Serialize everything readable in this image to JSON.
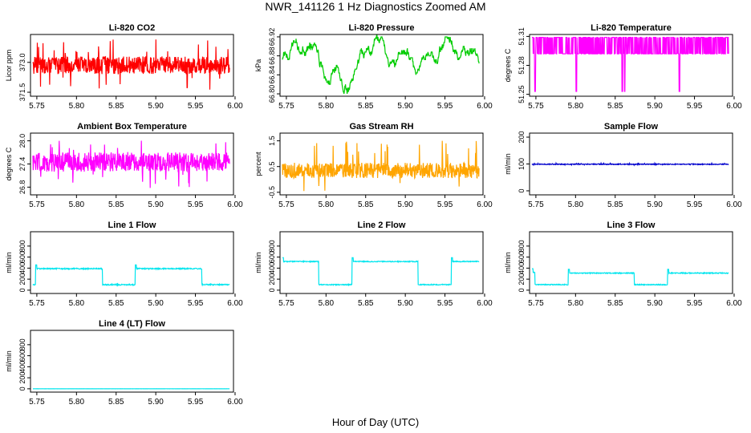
{
  "figure": {
    "title": "NWR_141126  1 Hz Diagnostics Zoomed AM",
    "xlabel": "Hour of Day (UTC)"
  },
  "chart_data": [
    {
      "id": "co2",
      "type": "line",
      "title": "Li-820 CO2",
      "ylabel": "Licor ppm",
      "color": "#ff0000",
      "xlim": [
        5.742,
        5.998
      ],
      "ylim": [
        371.3,
        374.4
      ],
      "yticks": [
        "371.5",
        "373.0"
      ],
      "ytick_values": [
        371.5,
        373.0
      ],
      "xticks": [
        "5.75",
        "5.80",
        "5.85",
        "5.90",
        "5.95",
        "6.00"
      ],
      "series_model": {
        "pattern": "noise",
        "x_start": 5.745,
        "x_end": 5.993,
        "base": 372.85,
        "amplitude": 0.45,
        "spike_min": 371.6,
        "spike_max": 374.2
      }
    },
    {
      "id": "pressure",
      "type": "line",
      "title": "Li-820 Pressure",
      "ylabel": "kPa",
      "color": "#00cc00",
      "xlim": [
        5.742,
        5.998
      ],
      "ylim": [
        66.795,
        66.925
      ],
      "yticks": [
        "66.80",
        "66.84",
        "66.88",
        "66.92"
      ],
      "ytick_values": [
        66.8,
        66.84,
        66.88,
        66.92
      ],
      "xticks": [
        "5.75",
        "5.80",
        "5.85",
        "5.90",
        "5.95",
        "6.00"
      ],
      "series_model": {
        "pattern": "walk",
        "x_start": 5.745,
        "x_end": 5.993,
        "min": 66.8,
        "max": 66.92,
        "start": 66.87,
        "end": 66.9
      }
    },
    {
      "id": "temperature",
      "type": "line",
      "title": "Li-820 Temperature",
      "ylabel": "degrees C",
      "color": "#ff00ff",
      "xlim": [
        5.742,
        5.998
      ],
      "ylim": [
        51.248,
        51.312
      ],
      "yticks": [
        "51.25",
        "51.28",
        "51.31"
      ],
      "ytick_values": [
        51.25,
        51.28,
        51.31
      ],
      "xticks": [
        "5.75",
        "5.80",
        "5.85",
        "5.90",
        "5.95",
        "6.00"
      ],
      "series_model": {
        "pattern": "two-level",
        "x_start": 5.745,
        "x_end": 5.993,
        "low": 51.292,
        "high": 51.309,
        "dip_value": 51.253,
        "dips": [
          5.749,
          5.801,
          5.859,
          5.862,
          5.931
        ]
      }
    },
    {
      "id": "ambient",
      "type": "line",
      "title": "Ambient Box Temperature",
      "ylabel": "degrees C",
      "color": "#ff00ff",
      "xlim": [
        5.742,
        5.998
      ],
      "ylim": [
        26.6,
        28.2
      ],
      "yticks": [
        "26.8",
        "27.4",
        "28.0"
      ],
      "ytick_values": [
        26.8,
        27.4,
        28.0
      ],
      "xticks": [
        "5.75",
        "5.80",
        "5.85",
        "5.90",
        "5.95",
        "6.00"
      ],
      "series_model": {
        "pattern": "noise",
        "x_start": 5.745,
        "x_end": 5.993,
        "base": 27.45,
        "amplitude": 0.25,
        "spike_min": 26.7,
        "spike_max": 28.1
      }
    },
    {
      "id": "rh",
      "type": "line",
      "title": "Gas Stream RH",
      "ylabel": "percent",
      "color": "#ffa500",
      "xlim": [
        5.742,
        5.998
      ],
      "ylim": [
        -0.6,
        1.8
      ],
      "yticks": [
        "-0.5",
        "0.5",
        "1.5"
      ],
      "ytick_values": [
        -0.5,
        0.5,
        1.5
      ],
      "xticks": [
        "5.75",
        "5.80",
        "5.85",
        "5.90",
        "5.95",
        "6.00"
      ],
      "series_model": {
        "pattern": "noise",
        "x_start": 5.745,
        "x_end": 5.993,
        "base": 0.35,
        "amplitude": 0.3,
        "spike_min": -0.5,
        "spike_max": 1.55
      }
    },
    {
      "id": "sample",
      "type": "line",
      "title": "Sample Flow",
      "ylabel": "ml/min",
      "color": "#0000cc",
      "xlim": [
        5.742,
        5.998
      ],
      "ylim": [
        -15,
        215
      ],
      "yticks": [
        "0",
        "100",
        "200"
      ],
      "ytick_values": [
        0,
        100,
        200
      ],
      "xticks": [
        "5.75",
        "5.80",
        "5.85",
        "5.90",
        "5.95",
        "6.00"
      ],
      "series_model": {
        "pattern": "noise",
        "x_start": 5.745,
        "x_end": 5.993,
        "base": 99,
        "amplitude": 1.5,
        "spike_min": 95,
        "spike_max": 103
      }
    },
    {
      "id": "line1",
      "type": "line",
      "title": "Line 1 Flow",
      "ylabel": "ml/min",
      "color": "#00e5ee",
      "xlim": [
        5.742,
        5.998
      ],
      "ylim": [
        -60,
        1060
      ],
      "yticks": [
        "0",
        "200",
        "400",
        "600",
        "800"
      ],
      "ytick_values": [
        0,
        200,
        400,
        600,
        800
      ],
      "xticks": [
        "5.75",
        "5.80",
        "5.85",
        "5.90",
        "5.95",
        "6.00"
      ],
      "series_model": {
        "pattern": "steps",
        "x_start": 5.745,
        "x_end": 5.993,
        "noise": 10,
        "segments": [
          [
            5.745,
            5.7485,
            100
          ],
          [
            5.7485,
            5.833,
            390
          ],
          [
            5.833,
            5.874,
            100
          ],
          [
            5.874,
            5.958,
            390
          ],
          [
            5.958,
            5.993,
            100
          ]
        ]
      }
    },
    {
      "id": "line2",
      "type": "line",
      "title": "Line 2 Flow",
      "ylabel": "ml/min",
      "color": "#00e5ee",
      "xlim": [
        5.742,
        5.998
      ],
      "ylim": [
        -60,
        1060
      ],
      "yticks": [
        "0",
        "200",
        "400",
        "600",
        "800"
      ],
      "ytick_values": [
        0,
        200,
        400,
        600,
        800
      ],
      "xticks": [
        "5.75",
        "5.80",
        "5.85",
        "5.90",
        "5.95",
        "6.00"
      ],
      "series_model": {
        "pattern": "steps",
        "x_start": 5.745,
        "x_end": 5.993,
        "noise": 8,
        "segments": [
          [
            5.745,
            5.791,
            520
          ],
          [
            5.791,
            5.833,
            100
          ],
          [
            5.833,
            5.916,
            520
          ],
          [
            5.916,
            5.958,
            100
          ],
          [
            5.958,
            5.993,
            520
          ]
        ]
      }
    },
    {
      "id": "line3",
      "type": "line",
      "title": "Line 3 Flow",
      "ylabel": "ml/min",
      "color": "#00e5ee",
      "xlim": [
        5.742,
        5.998
      ],
      "ylim": [
        -60,
        1060
      ],
      "yticks": [
        "0",
        "200",
        "400",
        "600",
        "800"
      ],
      "ytick_values": [
        0,
        200,
        400,
        600,
        800
      ],
      "xticks": [
        "5.75",
        "5.80",
        "5.85",
        "5.90",
        "5.95",
        "6.00"
      ],
      "series_model": {
        "pattern": "steps",
        "x_start": 5.745,
        "x_end": 5.993,
        "noise": 8,
        "segments": [
          [
            5.745,
            5.749,
            320
          ],
          [
            5.749,
            5.791,
            100
          ],
          [
            5.791,
            5.874,
            310
          ],
          [
            5.874,
            5.916,
            100
          ],
          [
            5.916,
            5.993,
            310
          ]
        ]
      }
    },
    {
      "id": "line4",
      "type": "line",
      "title": "Line 4 (LT) Flow",
      "ylabel": "ml/min",
      "color": "#00e5ee",
      "xlim": [
        5.742,
        5.998
      ],
      "ylim": [
        -60,
        1060
      ],
      "yticks": [
        "0",
        "200",
        "400",
        "600",
        "800"
      ],
      "ytick_values": [
        0,
        200,
        400,
        600,
        800
      ],
      "xticks": [
        "5.75",
        "5.80",
        "5.85",
        "5.90",
        "5.95",
        "6.00"
      ],
      "series_model": {
        "pattern": "steps",
        "x_start": 5.745,
        "x_end": 5.993,
        "noise": 1,
        "segments": [
          [
            5.745,
            5.993,
            0
          ]
        ]
      }
    }
  ]
}
